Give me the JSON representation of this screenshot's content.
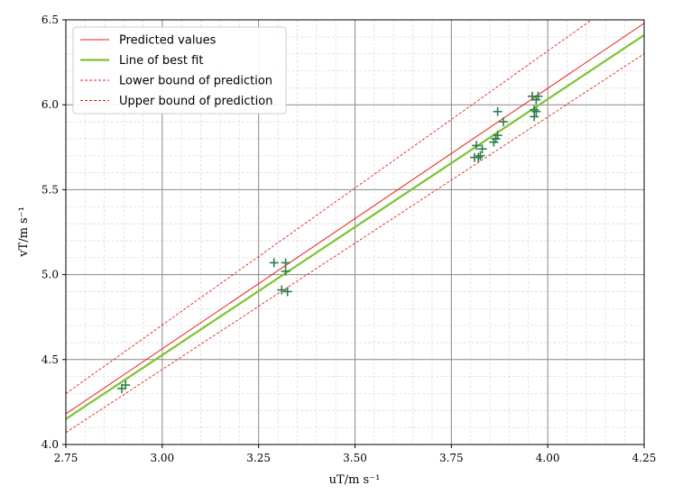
{
  "chart_data": {
    "type": "scatter",
    "title": "",
    "xlabel": "uT/m s⁻¹",
    "ylabel": "vT/m s⁻¹",
    "xlim": [
      2.75,
      4.25
    ],
    "ylim": [
      4.0,
      6.5
    ],
    "x_ticks": [
      "2.75",
      "3.00",
      "3.25",
      "3.50",
      "3.75",
      "4.00",
      "4.25"
    ],
    "y_ticks": [
      "4.0",
      "4.5",
      "5.0",
      "5.5",
      "6.0",
      "6.5"
    ],
    "grid": true,
    "minor_grid": true,
    "legend_position": "top-left",
    "legend": [
      {
        "label": "Predicted values",
        "color": "#e8221a",
        "style": "solid"
      },
      {
        "label": "Line of best fit",
        "color": "#7ec232",
        "style": "solid-thick"
      },
      {
        "label": "Lower bound of prediction",
        "color": "#e8221a",
        "style": "dashed"
      },
      {
        "label": "Upper bound of prediction",
        "color": "#e8221a",
        "style": "dashed"
      }
    ],
    "lines": [
      {
        "name": "Predicted values",
        "x": [
          2.75,
          4.25
        ],
        "y": [
          4.18,
          6.48
        ],
        "color": "#e8221a",
        "style": "solid"
      },
      {
        "name": "Line of best fit",
        "x": [
          2.75,
          4.25
        ],
        "y": [
          4.15,
          6.41
        ],
        "color": "#7ec232",
        "style": "solid-thick"
      },
      {
        "name": "Lower bound of prediction",
        "x": [
          2.75,
          4.25
        ],
        "y": [
          4.07,
          6.3
        ],
        "color": "#e8221a",
        "style": "dashed"
      },
      {
        "name": "Upper bound of prediction",
        "x": [
          2.75,
          4.25
        ],
        "y": [
          4.3,
          6.72
        ],
        "color": "#e8221a",
        "style": "dashed"
      }
    ],
    "points": {
      "color": "#2e7d4a",
      "marker": "+",
      "x": [
        2.895,
        2.905,
        3.29,
        3.32,
        3.32,
        3.31,
        3.325,
        3.81,
        3.82,
        3.815,
        3.825,
        3.83,
        3.86,
        3.865,
        3.87,
        3.87,
        3.885,
        3.96,
        3.97,
        3.975,
        3.965,
        3.97,
        3.965
      ],
      "y": [
        4.33,
        4.35,
        5.07,
        5.07,
        5.02,
        4.91,
        4.9,
        5.69,
        5.69,
        5.76,
        5.7,
        5.74,
        5.78,
        5.8,
        5.82,
        5.96,
        5.9,
        6.05,
        6.03,
        6.05,
        5.97,
        5.96,
        5.93
      ]
    }
  }
}
